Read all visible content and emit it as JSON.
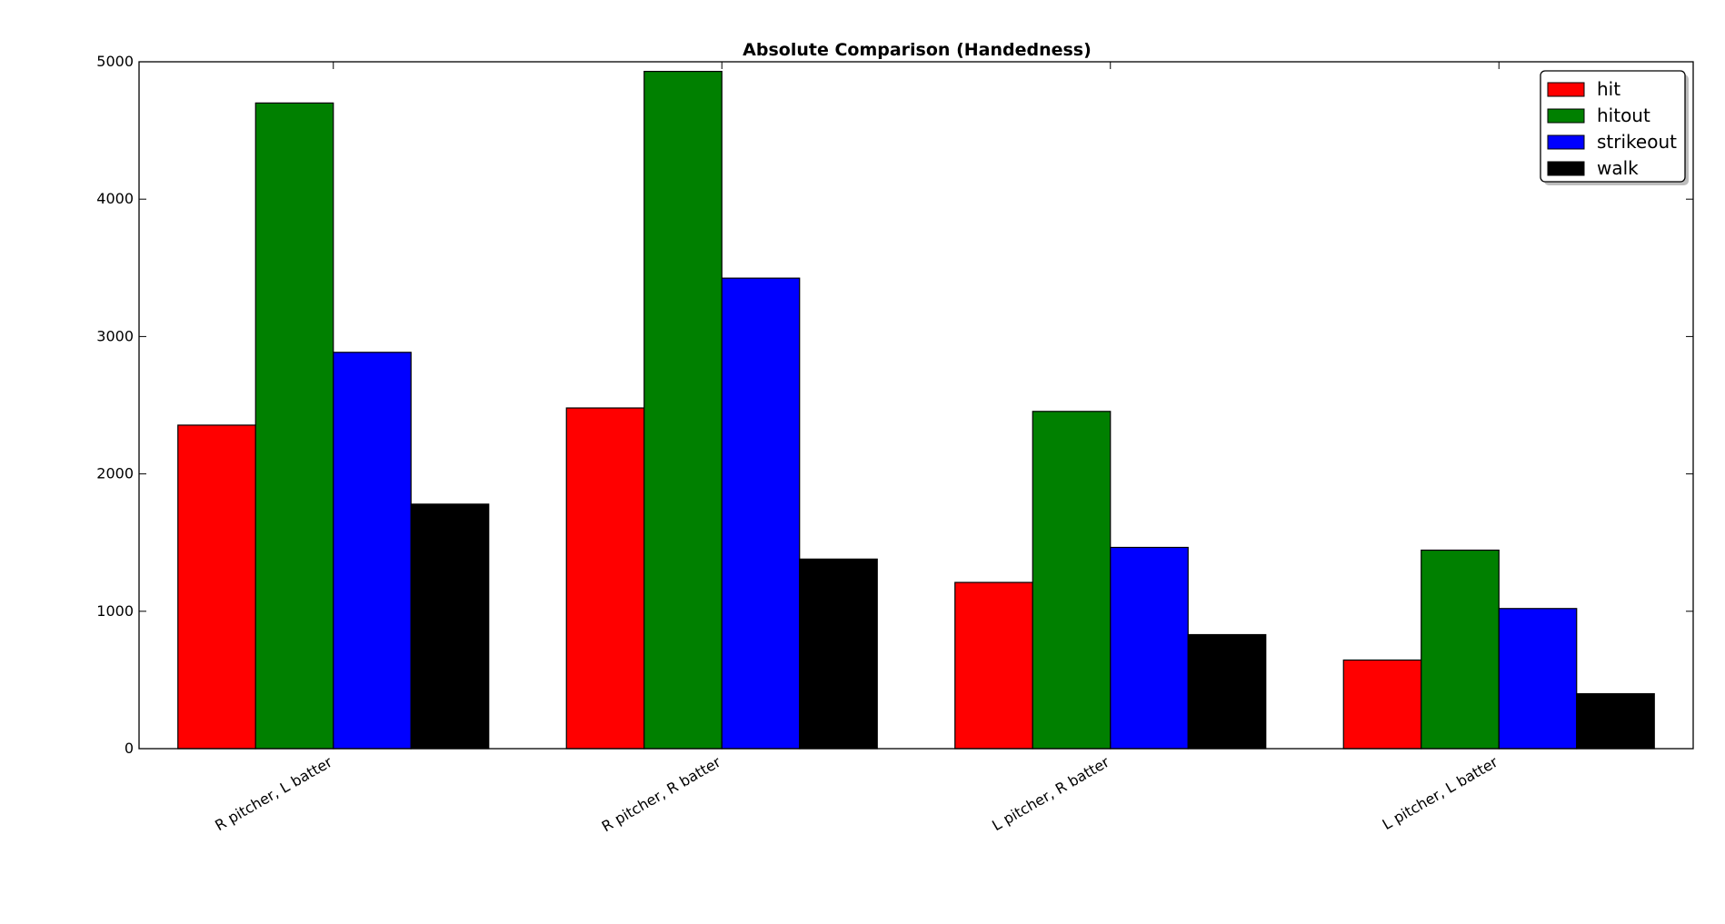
{
  "chart_data": {
    "type": "bar",
    "title": "Absolute Comparison (Handedness)",
    "xlabel": "",
    "ylabel": "",
    "categories": [
      "R pitcher, L batter",
      "R pitcher, R batter",
      "L pitcher, R batter",
      "L pitcher, L batter"
    ],
    "series": [
      {
        "name": "hit",
        "color": "#ff0000",
        "values": [
          2355,
          2480,
          1210,
          645
        ]
      },
      {
        "name": "hitout",
        "color": "#008000",
        "values": [
          4700,
          4930,
          2455,
          1445
        ]
      },
      {
        "name": "strikeout",
        "color": "#0000ff",
        "values": [
          2885,
          3425,
          1465,
          1020
        ]
      },
      {
        "name": "walk",
        "color": "#000000",
        "values": [
          1780,
          1380,
          830,
          400
        ]
      }
    ],
    "ylim": [
      0,
      5000
    ],
    "yticks": [
      0,
      1000,
      2000,
      3000,
      4000,
      5000
    ],
    "grid": false,
    "legend_position": "top-right"
  }
}
